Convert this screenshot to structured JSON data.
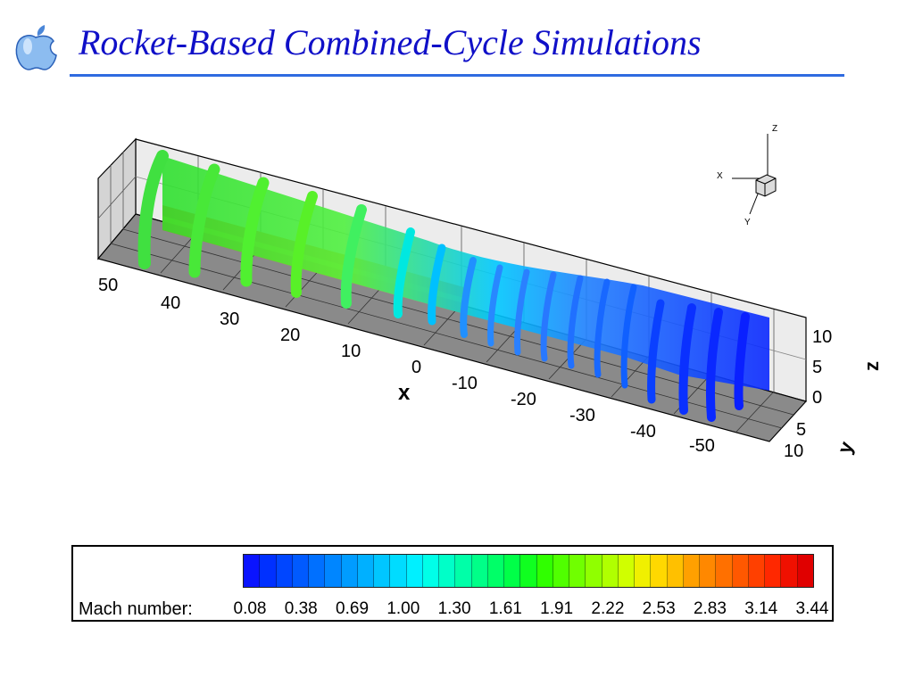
{
  "slide": {
    "title": "Rocket-Based Combined-Cycle Simulations"
  },
  "logo": {
    "icon": "apple-logo",
    "color": "#7fb0e8"
  },
  "axes": {
    "x": {
      "label": "x",
      "ticks": [
        "50",
        "40",
        "30",
        "20",
        "10",
        "0",
        "-10",
        "-20",
        "-30",
        "-40",
        "-50"
      ]
    },
    "y": {
      "label": "y",
      "ticks": [
        "5",
        "10"
      ]
    },
    "z": {
      "label": "z",
      "ticks": [
        "10",
        "5",
        "0"
      ]
    }
  },
  "triad": {
    "x_label": "X",
    "y_label": "Y",
    "z_label": "Z"
  },
  "legend": {
    "label": "Mach number:",
    "ticks": [
      "0.08",
      "0.38",
      "0.69",
      "1.00",
      "1.30",
      "1.61",
      "1.91",
      "2.22",
      "2.53",
      "2.83",
      "3.14",
      "3.44"
    ],
    "colors": [
      "#0a14ff",
      "#0030ff",
      "#0046ff",
      "#005aff",
      "#0070ff",
      "#0086ff",
      "#009cff",
      "#00b0ff",
      "#00c6ff",
      "#00dcff",
      "#00f0ff",
      "#00ffe8",
      "#00ffc8",
      "#00ffa8",
      "#00ff88",
      "#00ff68",
      "#00ff48",
      "#10ff20",
      "#30ff00",
      "#50ff00",
      "#70ff00",
      "#90ff00",
      "#b0ff00",
      "#d0ff00",
      "#f0f000",
      "#ffd800",
      "#ffc000",
      "#ffa000",
      "#ff8800",
      "#ff7000",
      "#ff5800",
      "#ff4000",
      "#ff2800",
      "#f01000",
      "#e00000"
    ]
  }
}
